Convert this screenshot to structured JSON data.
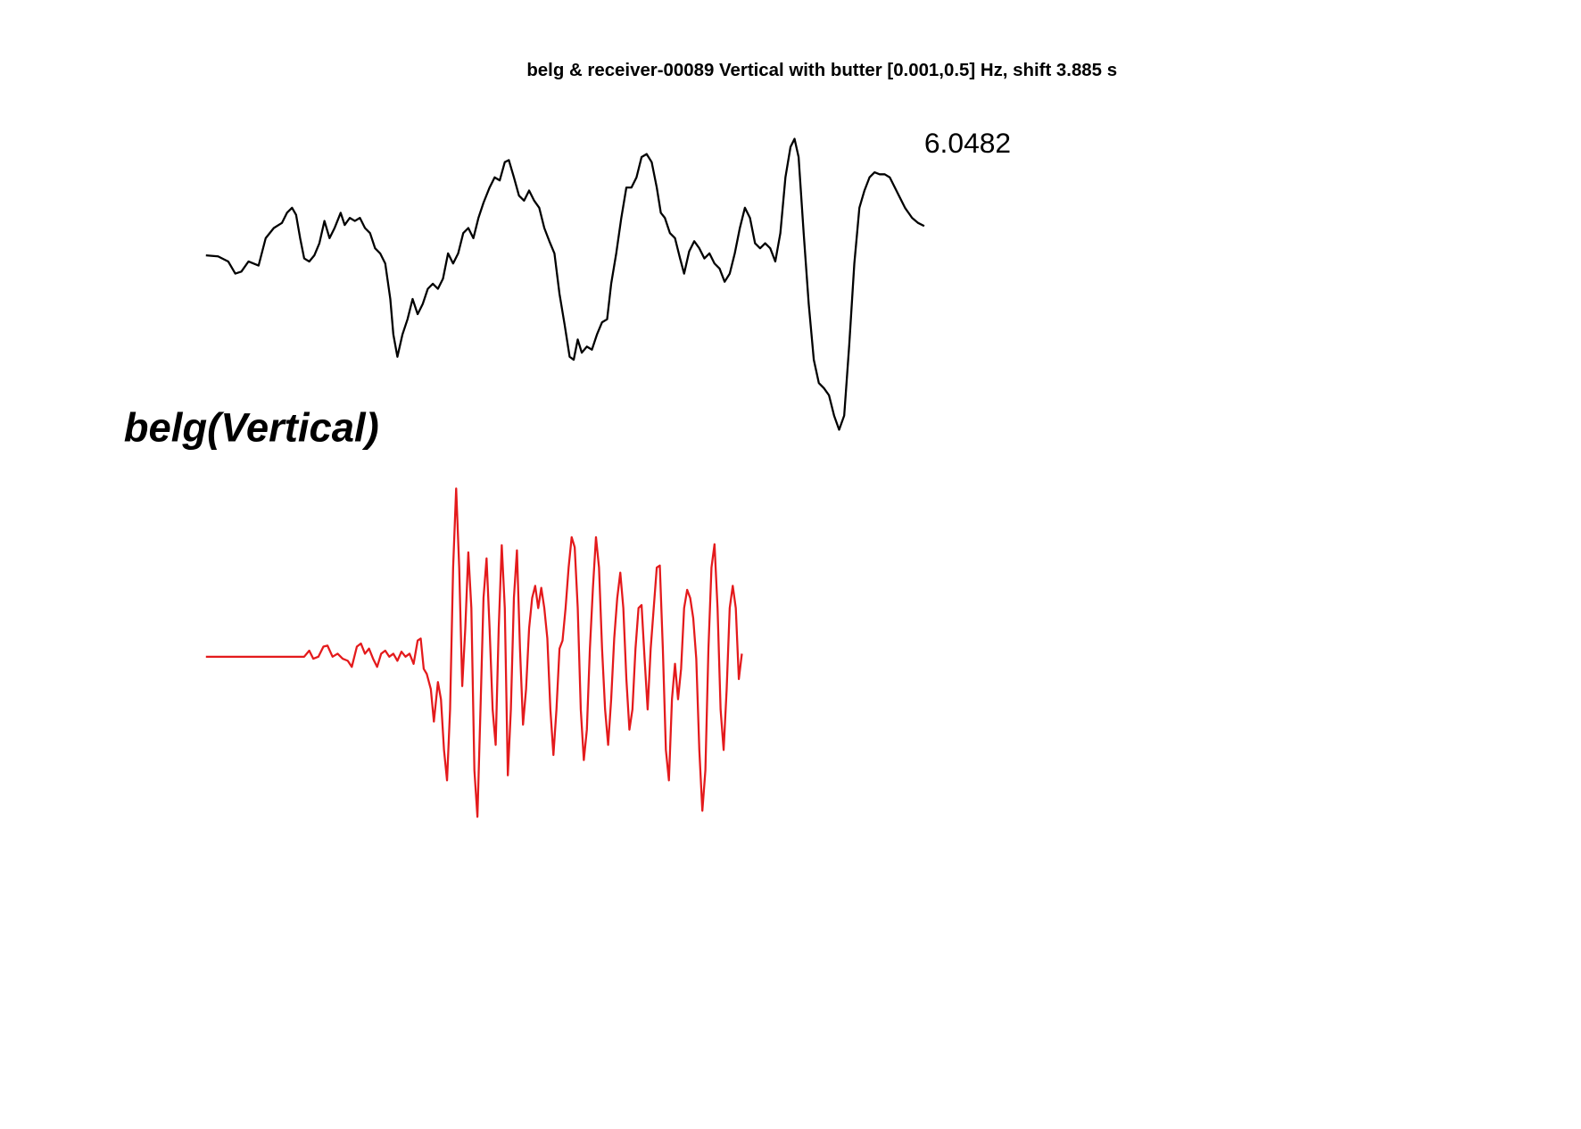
{
  "chart_data": [
    {
      "type": "line",
      "title": "belg & receiver-00089 Vertical with butter [0.001,0.5] Hz, shift 3.885 s",
      "annotation": "6.0482",
      "color": "#000000",
      "xlim": [
        0,
        70.9
      ],
      "ylim": [
        -18,
        12
      ],
      "x": [
        0,
        1.2,
        2.2,
        2.9,
        3.5,
        4.2,
        5.2,
        5.9,
        6.7,
        7.5,
        8,
        8.5,
        8.9,
        9.3,
        9.7,
        10.2,
        10.7,
        11.2,
        11.7,
        12.2,
        12.7,
        13.3,
        13.7,
        14.2,
        14.7,
        15.2,
        15.7,
        16.2,
        16.7,
        17.2,
        17.7,
        18.2,
        18.5,
        18.9,
        19.4,
        19.9,
        20.4,
        20.9,
        21.4,
        21.9,
        22.4,
        22.9,
        23.4,
        23.9,
        24.4,
        24.9,
        25.4,
        25.9,
        26.4,
        26.9,
        27.4,
        28,
        28.5,
        29,
        29.5,
        29.9,
        30.4,
        30.9,
        31.4,
        31.9,
        32.4,
        32.9,
        33.4,
        33.9,
        34.4,
        34.9,
        35.4,
        35.9,
        36.3,
        36.7,
        37.1,
        37.6,
        38.1,
        38.6,
        39.1,
        39.6,
        40,
        40.5,
        41,
        41.5,
        42,
        42.5,
        43,
        43.5,
        44,
        44.5,
        44.9,
        45.3,
        45.8,
        46.3,
        46.8,
        47.2,
        47.7,
        48.2,
        48.7,
        49.2,
        49.7,
        50.2,
        50.7,
        51.2,
        51.7,
        52.2,
        52.7,
        53.2,
        53.7,
        54.2,
        54.7,
        55.2,
        55.7,
        56.2,
        56.7,
        57.2,
        57.7,
        58.1,
        58.5,
        59,
        59.5,
        60,
        60.5,
        61,
        61.5,
        62,
        62.5,
        63,
        63.5,
        64,
        64.5,
        65,
        65.5,
        66,
        66.5,
        67,
        67.5,
        68,
        68.5,
        69,
        69.7,
        70.3,
        70.9
      ],
      "values": [
        -0.2,
        -0.3,
        -0.8,
        -2,
        -1.8,
        -0.8,
        -1.2,
        1.5,
        2.5,
        3,
        4,
        4.5,
        3.8,
        1.5,
        -0.5,
        -0.8,
        -0.2,
        1,
        3.2,
        1.5,
        2.5,
        4,
        2.8,
        3.5,
        3.2,
        3.5,
        2.5,
        2,
        0.5,
        0,
        -1,
        -4.5,
        -8,
        -10.2,
        -8,
        -6.5,
        -4.5,
        -6,
        -5,
        -3.5,
        -3,
        -3.5,
        -2.5,
        0,
        -1,
        0,
        2,
        2.5,
        1.5,
        3.5,
        5,
        6.5,
        7.5,
        7.2,
        9,
        9.2,
        7.5,
        5.7,
        5.2,
        6.2,
        5.2,
        4.5,
        2.5,
        1.2,
        0,
        -4,
        -7,
        -10.2,
        -10.5,
        -8.5,
        -9.8,
        -9.2,
        -9.5,
        -8,
        -6.8,
        -6.5,
        -3,
        0,
        3.5,
        6.5,
        6.5,
        7.5,
        9.5,
        9.8,
        9,
        6.5,
        4,
        3.5,
        2,
        1.5,
        -0.5,
        -2,
        0.2,
        1.2,
        0.5,
        -0.5,
        0,
        -1,
        -1.5,
        -2.8,
        -2,
        0,
        2.5,
        4.5,
        3.5,
        1,
        0.5,
        1,
        0.5,
        -0.8,
        2,
        7.5,
        10.5,
        11.3,
        9.5,
        2,
        -5,
        -10.5,
        -12.8,
        -13.3,
        -14,
        -16,
        -17.4,
        -16,
        -9,
        -1,
        4.5,
        6.2,
        7.5,
        8,
        7.8,
        7.8,
        7.5,
        6.5,
        5.5,
        4.5,
        3.5,
        3,
        2.7
      ]
    },
    {
      "type": "line",
      "title": "belg(Vertical)",
      "color": "#e41a1c",
      "xlim": [
        0,
        53
      ],
      "ylim": [
        -16,
        17
      ],
      "x": [
        0,
        9.7,
        10.2,
        10.6,
        11.1,
        11.6,
        12,
        12.5,
        13,
        13.5,
        14,
        14.4,
        14.9,
        15.3,
        15.7,
        16.1,
        16.5,
        16.9,
        17.3,
        17.7,
        18.1,
        18.5,
        18.9,
        19.3,
        19.7,
        20.1,
        20.5,
        20.9,
        21.2,
        21.5,
        21.8,
        22.2,
        22.5,
        22.9,
        23.2,
        23.5,
        23.8,
        24.1,
        24.4,
        24.7,
        25,
        25.3,
        25.6,
        25.9,
        26.2,
        26.5,
        26.8,
        27.1,
        27.4,
        27.7,
        28,
        28.3,
        28.6,
        28.9,
        29.2,
        29.5,
        29.8,
        30.1,
        30.4,
        30.7,
        31,
        31.3,
        31.6,
        31.9,
        32.2,
        32.5,
        32.8,
        33.1,
        33.4,
        33.7,
        34,
        34.3,
        34.6,
        34.9,
        35.2,
        35.5,
        35.8,
        36.1,
        36.4,
        36.7,
        37,
        37.3,
        37.6,
        37.9,
        38.2,
        38.5,
        38.8,
        39.1,
        39.4,
        39.7,
        40,
        40.3,
        40.6,
        40.9,
        41.2,
        41.5,
        41.8,
        42.1,
        42.4,
        42.7,
        43,
        43.3,
        43.6,
        43.9,
        44.2,
        44.5,
        44.8,
        45.1,
        45.4,
        45.7,
        46,
        46.3,
        46.6,
        46.9,
        47.2,
        47.5,
        47.8,
        48.1,
        48.4,
        48.7,
        49,
        49.3,
        49.6,
        49.9,
        50.2,
        50.5,
        50.8,
        51.1,
        51.4,
        51.7,
        52,
        52.3,
        52.6,
        52.9
      ],
      "values": [
        0,
        0,
        0.6,
        -0.2,
        0,
        1,
        1.1,
        0,
        0.3,
        -0.2,
        -0.4,
        -1,
        1,
        1.3,
        0.3,
        0.8,
        -0.2,
        -1,
        0.3,
        0.6,
        0,
        0.3,
        -0.4,
        0.5,
        0,
        0.3,
        -0.7,
        1.6,
        1.8,
        -1.2,
        -1.7,
        -3.2,
        -6.4,
        -2.5,
        -4.2,
        -9.2,
        -12.2,
        -5.2,
        8.8,
        16.6,
        8.8,
        -2.9,
        2.8,
        10.3,
        4.8,
        -11.2,
        -15.8,
        -5.2,
        5.8,
        9.7,
        2.8,
        -5.2,
        -8.7,
        2.8,
        11,
        4.8,
        -11.7,
        -5.2,
        5.8,
        10.5,
        0.8,
        -6.7,
        -3.2,
        2.8,
        5.8,
        7,
        4.8,
        6.8,
        4.8,
        1.8,
        -5.2,
        -9.7,
        -5.2,
        0.8,
        1.6,
        4.8,
        8.8,
        11.8,
        10.8,
        4.8,
        -5.2,
        -10.2,
        -7.2,
        0.8,
        6.8,
        11.8,
        8.8,
        0.8,
        -5.2,
        -8.7,
        -4.2,
        1.8,
        5.8,
        8.3,
        4.8,
        -2.2,
        -7.2,
        -5.2,
        0.8,
        4.8,
        5.1,
        -0.2,
        -5.2,
        0.8,
        4.8,
        8.8,
        9,
        0.8,
        -9.2,
        -12.2,
        -4.2,
        -0.7,
        -4.2,
        -1.2,
        4.8,
        6.6,
        5.8,
        3.8,
        -0.2,
        -9.2,
        -15.2,
        -11.2,
        0.8,
        8.8,
        11.1,
        4.8,
        -5.2,
        -9.2,
        -3.2,
        4.8,
        7,
        4.8,
        -2.2,
        0.3
      ]
    }
  ]
}
